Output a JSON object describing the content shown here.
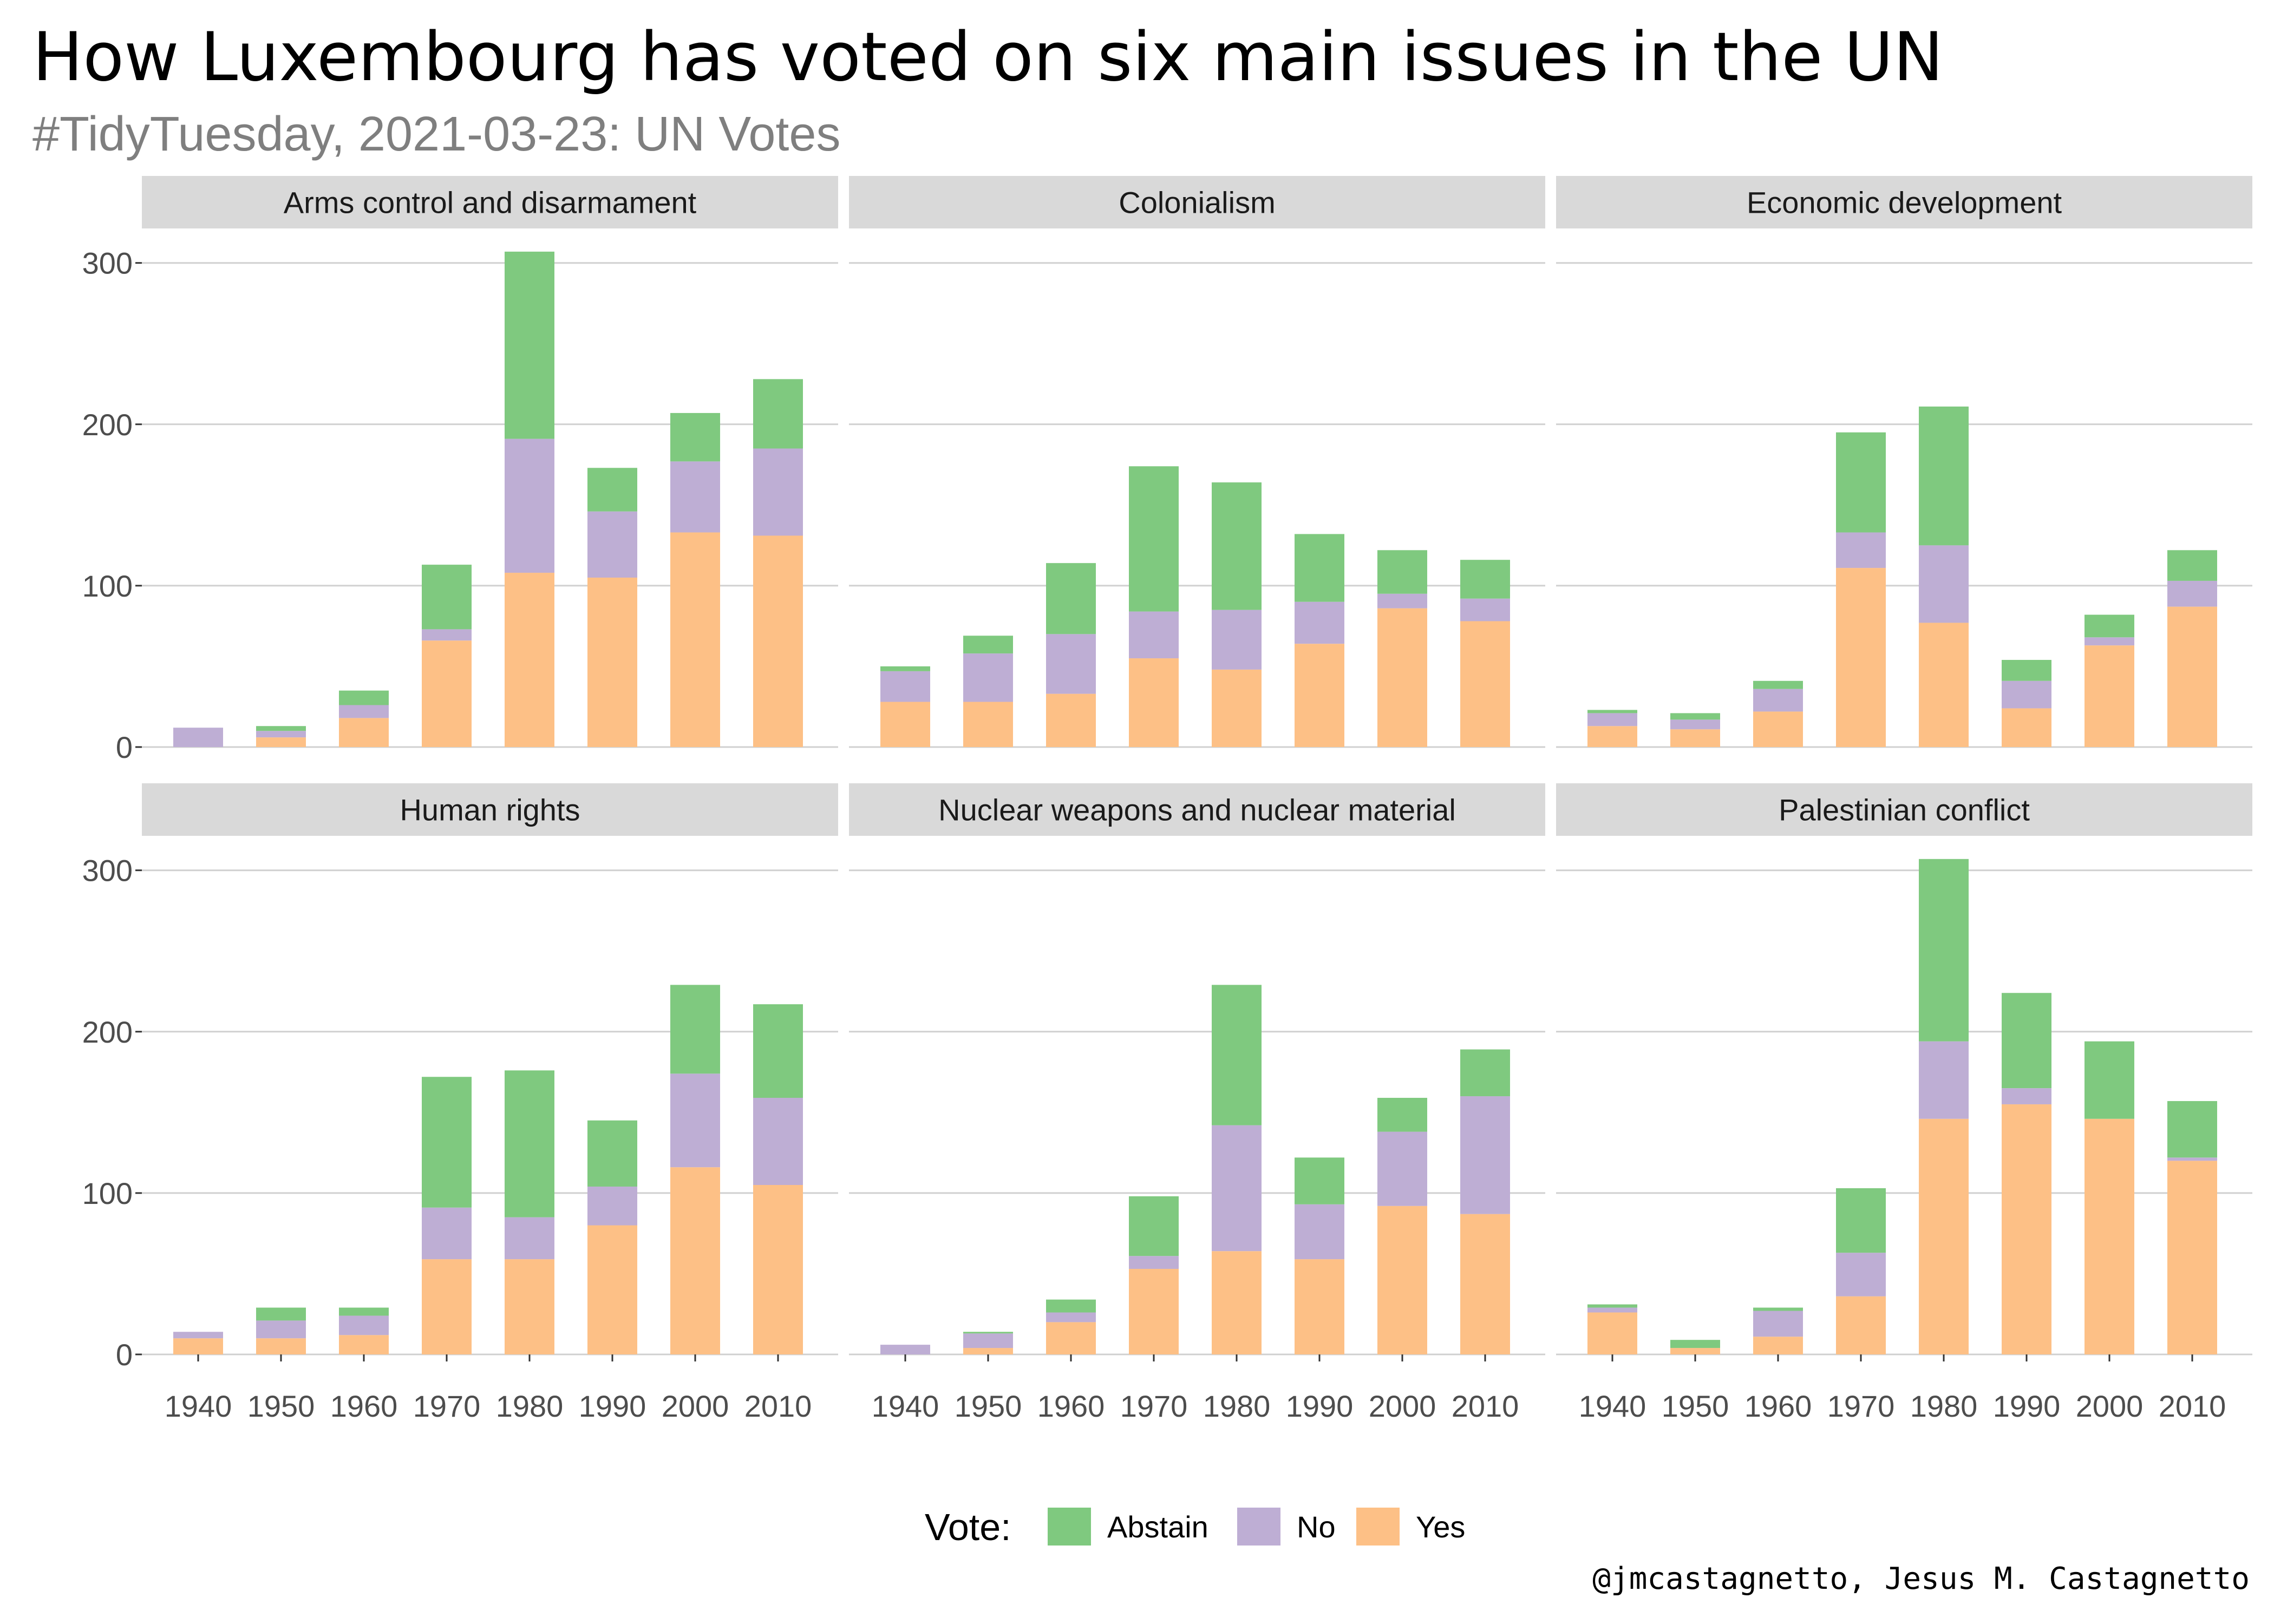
{
  "title": "How Luxembourg has voted on six main issues in the UN",
  "subtitle": "#TidyTuesday, 2021-03-23: UN Votes",
  "caption": "@jmcastagnetto, Jesus M. Castagnetto",
  "legend": {
    "title": "Vote:",
    "items": [
      {
        "label": "Abstain",
        "color": "#7fc97f"
      },
      {
        "label": "No",
        "color": "#beaed4"
      },
      {
        "label": "Yes",
        "color": "#fdc086"
      }
    ]
  },
  "chart_data": {
    "type": "bar",
    "stacked": true,
    "facets": true,
    "categories": [
      "1940",
      "1950",
      "1960",
      "1970",
      "1980",
      "1990",
      "2000",
      "2010"
    ],
    "y_ticks": [
      "0",
      "100",
      "200",
      "300"
    ],
    "ylim": [
      0,
      320
    ],
    "grid": true,
    "legend_position": "bottom",
    "series_colors": {
      "Abstain": "#7fc97f",
      "No": "#beaed4",
      "Yes": "#fdc086"
    },
    "panels": [
      {
        "name": "Arms control and disarmament",
        "series": [
          {
            "name": "Yes",
            "values": [
              0,
              6,
              18,
              66,
              108,
              105,
              133,
              131
            ]
          },
          {
            "name": "No",
            "values": [
              12,
              4,
              8,
              7,
              83,
              41,
              44,
              54
            ]
          },
          {
            "name": "Abstain",
            "values": [
              0,
              3,
              9,
              40,
              116,
              27,
              30,
              43
            ]
          }
        ]
      },
      {
        "name": "Colonialism",
        "series": [
          {
            "name": "Yes",
            "values": [
              28,
              28,
              33,
              55,
              48,
              64,
              86,
              78
            ]
          },
          {
            "name": "No",
            "values": [
              19,
              30,
              37,
              29,
              37,
              26,
              9,
              14
            ]
          },
          {
            "name": "Abstain",
            "values": [
              3,
              11,
              44,
              90,
              79,
              42,
              27,
              24
            ]
          }
        ]
      },
      {
        "name": "Economic development",
        "series": [
          {
            "name": "Yes",
            "values": [
              13,
              11,
              22,
              111,
              77,
              24,
              63,
              87
            ]
          },
          {
            "name": "No",
            "values": [
              8,
              6,
              14,
              22,
              48,
              17,
              5,
              16
            ]
          },
          {
            "name": "Abstain",
            "values": [
              2,
              4,
              5,
              62,
              86,
              13,
              14,
              19
            ]
          }
        ]
      },
      {
        "name": "Human rights",
        "series": [
          {
            "name": "Yes",
            "values": [
              10,
              10,
              12,
              59,
              59,
              80,
              116,
              105
            ]
          },
          {
            "name": "No",
            "values": [
              4,
              11,
              12,
              32,
              26,
              24,
              58,
              54
            ]
          },
          {
            "name": "Abstain",
            "values": [
              0,
              8,
              5,
              81,
              91,
              41,
              55,
              58
            ]
          }
        ]
      },
      {
        "name": "Nuclear weapons and nuclear material",
        "series": [
          {
            "name": "Yes",
            "values": [
              0,
              4,
              20,
              53,
              64,
              59,
              92,
              87
            ]
          },
          {
            "name": "No",
            "values": [
              6,
              9,
              6,
              8,
              78,
              34,
              46,
              73
            ]
          },
          {
            "name": "Abstain",
            "values": [
              0,
              1,
              8,
              37,
              87,
              29,
              21,
              29
            ]
          }
        ]
      },
      {
        "name": "Palestinian conflict",
        "series": [
          {
            "name": "Yes",
            "values": [
              26,
              4,
              11,
              36,
              146,
              155,
              146,
              120
            ]
          },
          {
            "name": "No",
            "values": [
              3,
              0,
              16,
              27,
              48,
              10,
              0,
              2
            ]
          },
          {
            "name": "Abstain",
            "values": [
              2,
              5,
              2,
              40,
              113,
              59,
              48,
              35
            ]
          }
        ]
      }
    ]
  }
}
